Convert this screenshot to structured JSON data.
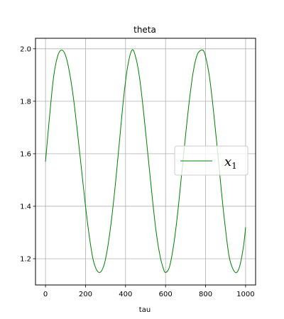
{
  "chart_data": {
    "type": "line",
    "title": "theta",
    "xlabel": "tau",
    "ylabel": "",
    "xlim": [
      -50,
      1050
    ],
    "ylim": [
      1.1,
      2.04
    ],
    "xticks": [
      0,
      200,
      400,
      600,
      800,
      1000
    ],
    "xtick_labels": [
      "0",
      "200",
      "400",
      "600",
      "800",
      "1000"
    ],
    "yticks": [
      1.2,
      1.4,
      1.6,
      1.8,
      2.0
    ],
    "ytick_labels": [
      "1.2",
      "1.4",
      "1.6",
      "1.8",
      "2.0"
    ],
    "grid": true,
    "legend": {
      "placement": "center-right",
      "entries": [
        {
          "base": "x",
          "sub": "1"
        }
      ]
    },
    "series": [
      {
        "color": "#008000",
        "x": [
          0,
          20,
          40,
          60,
          80,
          100,
          120,
          140,
          160,
          180,
          200,
          220,
          240,
          266,
          290,
          310,
          330,
          350,
          370,
          390,
          410,
          432,
          450,
          470,
          490,
          510,
          530,
          550,
          570,
          590,
          602,
          620,
          640,
          660,
          680,
          700,
          720,
          740,
          760,
          785,
          800,
          820,
          840,
          860,
          880,
          900,
          920,
          948,
          970,
          990,
          1000
        ],
        "y": [
          1.57,
          1.74,
          1.89,
          1.97,
          1.995,
          1.975,
          1.91,
          1.81,
          1.68,
          1.54,
          1.4,
          1.28,
          1.19,
          1.148,
          1.17,
          1.24,
          1.35,
          1.49,
          1.65,
          1.81,
          1.93,
          1.995,
          1.97,
          1.89,
          1.76,
          1.61,
          1.46,
          1.32,
          1.22,
          1.16,
          1.148,
          1.17,
          1.25,
          1.37,
          1.52,
          1.67,
          1.81,
          1.92,
          1.98,
          1.995,
          1.97,
          1.89,
          1.76,
          1.61,
          1.45,
          1.31,
          1.2,
          1.148,
          1.17,
          1.25,
          1.32
        ]
      }
    ]
  }
}
